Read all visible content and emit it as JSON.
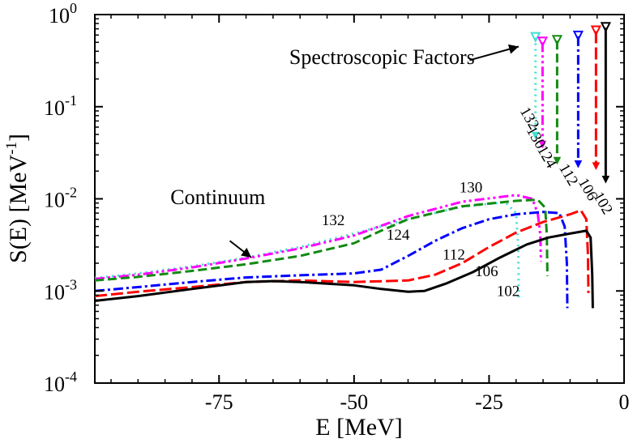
{
  "chart_data": {
    "type": "line",
    "xlabel": "E [MeV]",
    "ylabel": "S(E) [MeV",
    "ylabel_exponent": "-1",
    "ylabel_close": "]",
    "xlim": [
      -98,
      0
    ],
    "ylim_log10": [
      -4,
      0
    ],
    "x_ticks": [
      {
        "value": -75,
        "label": "-75"
      },
      {
        "value": -50,
        "label": "-50"
      },
      {
        "value": -25,
        "label": "-25"
      },
      {
        "value": 0,
        "label": "0"
      }
    ],
    "y_ticks": [
      {
        "exp": 0,
        "base": "10",
        "sup": "0"
      },
      {
        "exp": -1,
        "base": "10",
        "sup": "-1"
      },
      {
        "exp": -2,
        "base": "10",
        "sup": "-2"
      },
      {
        "exp": -3,
        "base": "10",
        "sup": "-3"
      },
      {
        "exp": -4,
        "base": "10",
        "sup": "-4"
      }
    ],
    "series": [
      {
        "name": "132",
        "color": "#40e0d0",
        "dash": "2,5",
        "points": [
          [
            -98,
            0.00138
          ],
          [
            -90,
            0.00155
          ],
          [
            -80,
            0.00185
          ],
          [
            -70,
            0.0023
          ],
          [
            -60,
            0.003
          ],
          [
            -50,
            0.0042
          ],
          [
            -40,
            0.006
          ],
          [
            -30,
            0.0082
          ],
          [
            -22,
            0.0092
          ],
          [
            -20,
            0.007
          ],
          [
            -19.6,
            0.003
          ],
          [
            -19.5,
            0.00085
          ]
        ],
        "spectroscopic": {
          "energy": -16.4,
          "from": 0.56,
          "to": 0.045
        }
      },
      {
        "name": "130",
        "color": "#ff00ff",
        "dash": "12,4,3,4,3,4",
        "points": [
          [
            -98,
            0.00135
          ],
          [
            -90,
            0.0015
          ],
          [
            -80,
            0.0018
          ],
          [
            -70,
            0.00225
          ],
          [
            -60,
            0.0029
          ],
          [
            -50,
            0.004
          ],
          [
            -40,
            0.0065
          ],
          [
            -30,
            0.0093
          ],
          [
            -20,
            0.011
          ],
          [
            -17,
            0.01
          ],
          [
            -16,
            0.007
          ],
          [
            -15.5,
            0.004
          ],
          [
            -15.4,
            0.0021
          ]
        ],
        "spectroscopic": {
          "energy": -15.1,
          "from": 0.5,
          "to": 0.036
        }
      },
      {
        "name": "124",
        "color": "#138a13",
        "dash": "11,5",
        "points": [
          [
            -98,
            0.0013
          ],
          [
            -90,
            0.00142
          ],
          [
            -80,
            0.00165
          ],
          [
            -70,
            0.00195
          ],
          [
            -60,
            0.0024
          ],
          [
            -50,
            0.0033
          ],
          [
            -45,
            0.0045
          ],
          [
            -40,
            0.006
          ],
          [
            -30,
            0.0083
          ],
          [
            -20,
            0.0095
          ],
          [
            -16,
            0.0098
          ],
          [
            -14.6,
            0.008
          ],
          [
            -14.3,
            0.004
          ],
          [
            -14.2,
            0.00145
          ]
        ],
        "spectroscopic": {
          "energy": -12.4,
          "from": 0.52,
          "to": 0.024
        }
      },
      {
        "name": "112",
        "color": "#0000ff",
        "dash": "12,4,3,4",
        "points": [
          [
            -98,
            0.001
          ],
          [
            -90,
            0.0011
          ],
          [
            -80,
            0.00125
          ],
          [
            -70,
            0.0014
          ],
          [
            -60,
            0.00148
          ],
          [
            -50,
            0.00155
          ],
          [
            -45,
            0.0017
          ],
          [
            -40,
            0.0024
          ],
          [
            -35,
            0.0035
          ],
          [
            -30,
            0.0048
          ],
          [
            -25,
            0.006
          ],
          [
            -20,
            0.0068
          ],
          [
            -15,
            0.0072
          ],
          [
            -12,
            0.007
          ],
          [
            -11,
            0.005
          ],
          [
            -10.6,
            0.002
          ],
          [
            -10.5,
            0.00065
          ]
        ],
        "spectroscopic": {
          "energy": -8.5,
          "from": 0.58,
          "to": 0.022
        }
      },
      {
        "name": "106",
        "color": "#ff0000",
        "dash": "15,5",
        "points": [
          [
            -98,
            0.00088
          ],
          [
            -90,
            0.00098
          ],
          [
            -80,
            0.0011
          ],
          [
            -70,
            0.00125
          ],
          [
            -60,
            0.0013
          ],
          [
            -50,
            0.00125
          ],
          [
            -40,
            0.0013
          ],
          [
            -35,
            0.0015
          ],
          [
            -30,
            0.002
          ],
          [
            -25,
            0.003
          ],
          [
            -20,
            0.0043
          ],
          [
            -15,
            0.0056
          ],
          [
            -10,
            0.0068
          ],
          [
            -8,
            0.0075
          ],
          [
            -7,
            0.006
          ],
          [
            -6.7,
            0.0025
          ],
          [
            -6.6,
            0.00095
          ]
        ],
        "spectroscopic": {
          "energy": -5.2,
          "from": 0.66,
          "to": 0.021
        }
      },
      {
        "name": "102",
        "color": "#000000",
        "dash": "",
        "points": [
          [
            -98,
            0.00078
          ],
          [
            -90,
            0.00088
          ],
          [
            -80,
            0.00105
          ],
          [
            -70,
            0.00125
          ],
          [
            -65,
            0.00128
          ],
          [
            -60,
            0.00125
          ],
          [
            -50,
            0.00115
          ],
          [
            -45,
            0.00105
          ],
          [
            -40,
            0.00098
          ],
          [
            -37,
            0.001
          ],
          [
            -33,
            0.0012
          ],
          [
            -28,
            0.0016
          ],
          [
            -23,
            0.0023
          ],
          [
            -18,
            0.0032
          ],
          [
            -14,
            0.0038
          ],
          [
            -10,
            0.0042
          ],
          [
            -7,
            0.0045
          ],
          [
            -6.2,
            0.0038
          ],
          [
            -5.9,
            0.0015
          ],
          [
            -5.8,
            0.00065
          ]
        ],
        "spectroscopic": {
          "energy": -3.4,
          "from": 0.72,
          "to": 0.015
        }
      }
    ],
    "curve_labels": [
      {
        "text": "130",
        "x": -30.5,
        "y": 0.0118
      },
      {
        "text": "132",
        "x": -56,
        "y": 0.0052
      },
      {
        "text": "124",
        "x": -44,
        "y": 0.0036
      },
      {
        "text": "112",
        "x": -33.6,
        "y": 0.0022
      },
      {
        "text": "106",
        "x": -27.6,
        "y": 0.00145
      },
      {
        "text": "102",
        "x": -23.6,
        "y": 0.00088
      }
    ],
    "spectroscopic_labels": [
      {
        "text": "132",
        "x": -17.2,
        "y": 0.055,
        "rot": 60
      },
      {
        "text": "130",
        "x": -16.0,
        "y": 0.034,
        "rot": 60
      },
      {
        "text": "124",
        "x": -14.0,
        "y": 0.021,
        "rot": 60
      },
      {
        "text": "112",
        "x": -10.0,
        "y": 0.0135,
        "rot": 60
      },
      {
        "text": "106",
        "x": -6.4,
        "y": 0.0093,
        "rot": 60
      },
      {
        "text": "102",
        "x": -3.6,
        "y": 0.0066,
        "rot": 60
      }
    ],
    "annotations": [
      {
        "text": "Spectroscopic Factors",
        "x": -62,
        "y": 0.29,
        "arrow_to": [
          -19.5,
          0.45
        ],
        "arrow_from": [
          -28.6,
          0.32
        ]
      },
      {
        "text": "Continuum",
        "x": -84,
        "y": 0.0088,
        "arrow_to": [
          -69,
          0.0023
        ],
        "arrow_from": [
          -73,
          0.0035
        ]
      }
    ]
  }
}
